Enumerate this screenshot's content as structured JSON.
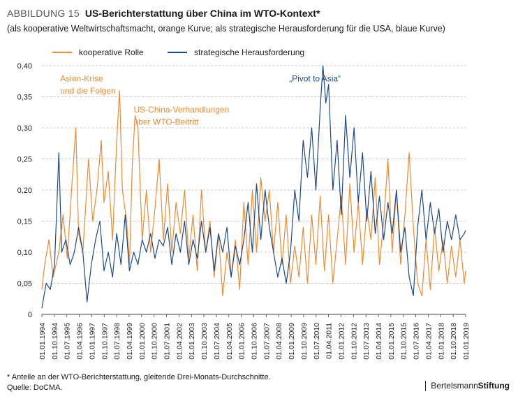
{
  "figure": {
    "number": "ABBILDUNG 15",
    "title": "US-Berichterstattung über China im WTO-Kontext*",
    "subtitle": "(als kooperative Weltwirtschaftsmacht, orange Kurve; als strategische Herausforderung für die USA, blaue Kurve)",
    "footnote": "* Anteile an der WTO-Berichterstattung, gleitende Drei-Monats-Durchschnitte.",
    "source": "Quelle: DoCMA.",
    "logo_regular": "Bertelsmann",
    "logo_bold": "Stiftung"
  },
  "colors": {
    "orange": "#ee8a2f",
    "blue": "#1b4a8c",
    "grid": "#b5b5b5",
    "axis": "#444444"
  },
  "chart_data": {
    "type": "line",
    "grid": "horizontal-dashed",
    "legend_placement": "top-left",
    "ylim": [
      0,
      0.4
    ],
    "yticks": [
      "0",
      "0,05",
      "0,10",
      "0,15",
      "0,20",
      "0,25",
      "0,30",
      "0,35",
      "0,40"
    ],
    "x_start": "1994-01",
    "x_end": "2019-01",
    "xtick_labels": [
      "01.01.1994",
      "01.10.1994",
      "01.07.1995",
      "01.04.1996",
      "01.01.1997",
      "01.10.1997",
      "01.07.1998",
      "01.04.1999",
      "01.01.2000",
      "01.10.2000",
      "01.07.2001",
      "01.04.2002",
      "01.01.2003",
      "01.10.2003",
      "01.07.2004",
      "01.04.2005",
      "01.01.2006",
      "01.10.2006",
      "01.07.2007",
      "01.04.2008",
      "01.01.2009",
      "01.10.2009",
      "01.07.2010",
      "01.04.2011",
      "01.01.2012",
      "01.10.2012",
      "01.07.2013",
      "01.04.2014",
      "01.01.2015",
      "01.10.2015",
      "01.07.2016",
      "01.04.2017",
      "01.01.2018",
      "01.10.2018",
      "01.01.2019"
    ],
    "annotations": [
      {
        "text": "Asien-Krise",
        "date": "1995-02",
        "y": 0.375,
        "color": "orange"
      },
      {
        "text": "und die Folgen",
        "date": "1995-02",
        "y": 0.355,
        "color": "orange"
      },
      {
        "text": "US-China-Verhandlungen",
        "date": "1999-06",
        "y": 0.325,
        "color": "orange"
      },
      {
        "text": "über WTO-Beitritt",
        "date": "1999-06",
        "y": 0.305,
        "color": "orange"
      },
      {
        "text": "„Pivot to Asia“",
        "date": "2008-08",
        "y": 0.375,
        "color": "blue"
      }
    ],
    "series": [
      {
        "name": "kooperative Rolle",
        "color": "orange",
        "points": [
          [
            "1994-01",
            0.04
          ],
          [
            "1994-03",
            0.08
          ],
          [
            "1994-06",
            0.12
          ],
          [
            "1994-09",
            0.06
          ],
          [
            "1995-01",
            0.1
          ],
          [
            "1995-04",
            0.16
          ],
          [
            "1995-07",
            0.09
          ],
          [
            "1995-10",
            0.2
          ],
          [
            "1996-01",
            0.3
          ],
          [
            "1996-03",
            0.13
          ],
          [
            "1996-06",
            0.1
          ],
          [
            "1996-10",
            0.25
          ],
          [
            "1997-01",
            0.15
          ],
          [
            "1997-04",
            0.2
          ],
          [
            "1997-07",
            0.28
          ],
          [
            "1997-09",
            0.18
          ],
          [
            "1997-12",
            0.23
          ],
          [
            "1998-03",
            0.12
          ],
          [
            "1998-06",
            0.28
          ],
          [
            "1998-08",
            0.36
          ],
          [
            "1998-10",
            0.2
          ],
          [
            "1999-01",
            0.15
          ],
          [
            "1999-03",
            0.08
          ],
          [
            "1999-05",
            0.24
          ],
          [
            "1999-07",
            0.32
          ],
          [
            "1999-09",
            0.3
          ],
          [
            "1999-12",
            0.12
          ],
          [
            "2000-03",
            0.2
          ],
          [
            "2000-06",
            0.1
          ],
          [
            "2000-09",
            0.17
          ],
          [
            "2000-12",
            0.25
          ],
          [
            "2001-03",
            0.12
          ],
          [
            "2001-06",
            0.21
          ],
          [
            "2001-09",
            0.1
          ],
          [
            "2001-12",
            0.18
          ],
          [
            "2002-03",
            0.13
          ],
          [
            "2002-06",
            0.2
          ],
          [
            "2002-09",
            0.09
          ],
          [
            "2002-12",
            0.16
          ],
          [
            "2003-03",
            0.07
          ],
          [
            "2003-06",
            0.2
          ],
          [
            "2003-09",
            0.1
          ],
          [
            "2003-12",
            0.15
          ],
          [
            "2004-03",
            0.06
          ],
          [
            "2004-06",
            0.13
          ],
          [
            "2004-09",
            0.03
          ],
          [
            "2004-12",
            0.1
          ],
          [
            "2005-03",
            0.06
          ],
          [
            "2005-06",
            0.12
          ],
          [
            "2005-09",
            0.04
          ],
          [
            "2005-12",
            0.18
          ],
          [
            "2006-03",
            0.08
          ],
          [
            "2006-06",
            0.2
          ],
          [
            "2006-09",
            0.1
          ],
          [
            "2006-12",
            0.22
          ],
          [
            "2007-03",
            0.15
          ],
          [
            "2007-06",
            0.2
          ],
          [
            "2007-09",
            0.1
          ],
          [
            "2007-12",
            0.18
          ],
          [
            "2008-03",
            0.08
          ],
          [
            "2008-06",
            0.16
          ],
          [
            "2008-09",
            0.05
          ],
          [
            "2008-12",
            0.11
          ],
          [
            "2009-03",
            0.06
          ],
          [
            "2009-06",
            0.14
          ],
          [
            "2009-09",
            0.05
          ],
          [
            "2009-12",
            0.16
          ],
          [
            "2010-03",
            0.08
          ],
          [
            "2010-06",
            0.19
          ],
          [
            "2010-09",
            0.07
          ],
          [
            "2010-12",
            0.16
          ],
          [
            "2011-03",
            0.05
          ],
          [
            "2011-06",
            0.12
          ],
          [
            "2011-09",
            0.19
          ],
          [
            "2011-12",
            0.08
          ],
          [
            "2012-03",
            0.21
          ],
          [
            "2012-06",
            0.1
          ],
          [
            "2012-09",
            0.18
          ],
          [
            "2012-12",
            0.08
          ],
          [
            "2013-03",
            0.17
          ],
          [
            "2013-06",
            0.12
          ],
          [
            "2013-09",
            0.22
          ],
          [
            "2013-12",
            0.08
          ],
          [
            "2014-03",
            0.15
          ],
          [
            "2014-06",
            0.25
          ],
          [
            "2014-09",
            0.1
          ],
          [
            "2014-12",
            0.2
          ],
          [
            "2015-03",
            0.08
          ],
          [
            "2015-06",
            0.16
          ],
          [
            "2015-09",
            0.26
          ],
          [
            "2015-12",
            0.14
          ],
          [
            "2016-03",
            0.05
          ],
          [
            "2016-06",
            0.03
          ],
          [
            "2016-09",
            0.12
          ],
          [
            "2016-12",
            0.04
          ],
          [
            "2017-03",
            0.14
          ],
          [
            "2017-06",
            0.07
          ],
          [
            "2017-09",
            0.12
          ],
          [
            "2017-12",
            0.05
          ],
          [
            "2018-03",
            0.11
          ],
          [
            "2018-06",
            0.06
          ],
          [
            "2018-09",
            0.12
          ],
          [
            "2018-12",
            0.05
          ],
          [
            "2019-01",
            0.07
          ]
        ]
      },
      {
        "name": "strategische Herausforderung",
        "color": "blue",
        "points": [
          [
            "1994-01",
            0.01
          ],
          [
            "1994-04",
            0.05
          ],
          [
            "1994-07",
            0.04
          ],
          [
            "1994-10",
            0.08
          ],
          [
            "1995-01",
            0.26
          ],
          [
            "1995-03",
            0.1
          ],
          [
            "1995-06",
            0.12
          ],
          [
            "1995-09",
            0.08
          ],
          [
            "1995-12",
            0.1
          ],
          [
            "1996-03",
            0.14
          ],
          [
            "1996-06",
            0.1
          ],
          [
            "1996-09",
            0.02
          ],
          [
            "1996-12",
            0.08
          ],
          [
            "1997-03",
            0.12
          ],
          [
            "1997-06",
            0.15
          ],
          [
            "1997-09",
            0.07
          ],
          [
            "1997-12",
            0.1
          ],
          [
            "1998-03",
            0.06
          ],
          [
            "1998-06",
            0.13
          ],
          [
            "1998-09",
            0.08
          ],
          [
            "1998-12",
            0.16
          ],
          [
            "1999-03",
            0.07
          ],
          [
            "1999-06",
            0.1
          ],
          [
            "1999-09",
            0.08
          ],
          [
            "1999-12",
            0.12
          ],
          [
            "2000-03",
            0.1
          ],
          [
            "2000-06",
            0.13
          ],
          [
            "2000-09",
            0.09
          ],
          [
            "2000-12",
            0.12
          ],
          [
            "2001-03",
            0.11
          ],
          [
            "2001-06",
            0.14
          ],
          [
            "2001-09",
            0.08
          ],
          [
            "2001-12",
            0.13
          ],
          [
            "2002-03",
            0.1
          ],
          [
            "2002-06",
            0.15
          ],
          [
            "2002-09",
            0.08
          ],
          [
            "2002-12",
            0.12
          ],
          [
            "2003-03",
            0.09
          ],
          [
            "2003-06",
            0.15
          ],
          [
            "2003-09",
            0.1
          ],
          [
            "2003-12",
            0.14
          ],
          [
            "2004-03",
            0.07
          ],
          [
            "2004-06",
            0.13
          ],
          [
            "2004-09",
            0.1
          ],
          [
            "2004-12",
            0.14
          ],
          [
            "2005-03",
            0.06
          ],
          [
            "2005-06",
            0.11
          ],
          [
            "2005-09",
            0.08
          ],
          [
            "2005-12",
            0.12
          ],
          [
            "2006-03",
            0.18
          ],
          [
            "2006-06",
            0.1
          ],
          [
            "2006-09",
            0.21
          ],
          [
            "2006-12",
            0.12
          ],
          [
            "2007-03",
            0.2
          ],
          [
            "2007-06",
            0.14
          ],
          [
            "2007-09",
            0.1
          ],
          [
            "2007-12",
            0.06
          ],
          [
            "2008-03",
            0.09
          ],
          [
            "2008-06",
            0.05
          ],
          [
            "2008-09",
            0.1
          ],
          [
            "2008-12",
            0.2
          ],
          [
            "2009-03",
            0.15
          ],
          [
            "2009-06",
            0.28
          ],
          [
            "2009-09",
            0.22
          ],
          [
            "2009-12",
            0.3
          ],
          [
            "2010-03",
            0.2
          ],
          [
            "2010-06",
            0.33
          ],
          [
            "2010-08",
            0.4
          ],
          [
            "2010-10",
            0.34
          ],
          [
            "2010-12",
            0.37
          ],
          [
            "2011-03",
            0.2
          ],
          [
            "2011-06",
            0.28
          ],
          [
            "2011-09",
            0.16
          ],
          [
            "2011-12",
            0.32
          ],
          [
            "2012-03",
            0.22
          ],
          [
            "2012-06",
            0.3
          ],
          [
            "2012-09",
            0.18
          ],
          [
            "2012-12",
            0.26
          ],
          [
            "2013-03",
            0.15
          ],
          [
            "2013-06",
            0.23
          ],
          [
            "2013-09",
            0.13
          ],
          [
            "2013-12",
            0.19
          ],
          [
            "2014-03",
            0.12
          ],
          [
            "2014-06",
            0.18
          ],
          [
            "2014-09",
            0.13
          ],
          [
            "2014-12",
            0.2
          ],
          [
            "2015-03",
            0.1
          ],
          [
            "2015-06",
            0.14
          ],
          [
            "2015-09",
            0.06
          ],
          [
            "2015-12",
            0.03
          ],
          [
            "2016-03",
            0.14
          ],
          [
            "2016-06",
            0.2
          ],
          [
            "2016-09",
            0.12
          ],
          [
            "2016-12",
            0.18
          ],
          [
            "2017-03",
            0.13
          ],
          [
            "2017-06",
            0.17
          ],
          [
            "2017-09",
            0.1
          ],
          [
            "2017-12",
            0.15
          ],
          [
            "2018-03",
            0.12
          ],
          [
            "2018-06",
            0.16
          ],
          [
            "2018-09",
            0.12
          ],
          [
            "2018-12",
            0.13
          ],
          [
            "2019-01",
            0.135
          ]
        ]
      }
    ]
  }
}
